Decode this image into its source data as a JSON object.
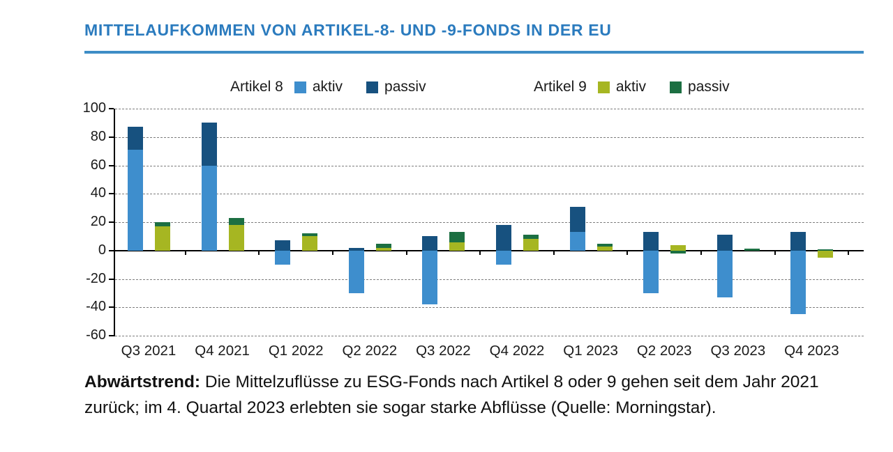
{
  "header": {
    "title": "MITTELAUFKOMMEN VON ARTIKEL-8- UND -9-FONDS IN DER EU"
  },
  "legend": {
    "artikel8_label": "Artikel 8",
    "artikel9_label": "Artikel 9",
    "aktiv_label": "aktiv",
    "passiv_label": "passiv"
  },
  "colors": {
    "title_blue": "#2b7bbe",
    "rule_blue": "#3e8dc6",
    "artikel8_aktiv": "#3e8ecd",
    "artikel8_passiv": "#17517f",
    "artikel9_aktiv": "#a6b622",
    "artikel9_passiv": "#1c6f42",
    "grid": "#7d7d7d",
    "axis": "#000000",
    "text": "#1a1a1a"
  },
  "chart_data": {
    "type": "bar",
    "stacked": true,
    "title": "Mittelaufkommen von Artikel-8- und -9-Fonds in der EU",
    "xlabel": "",
    "ylabel": "",
    "ylim": [
      -60,
      100
    ],
    "yticks": [
      100,
      80,
      60,
      40,
      20,
      0,
      -20,
      -40,
      -60
    ],
    "grid": "dashed-horizontal",
    "legend_position": "top",
    "categories": [
      "Q3 2021",
      "Q4 2021",
      "Q1 2022",
      "Q2 2022",
      "Q3 2022",
      "Q4 2022",
      "Q1 2023",
      "Q2 2023",
      "Q3 2023",
      "Q4 2023"
    ],
    "groups": [
      {
        "name": "Artikel 8",
        "series": [
          {
            "name": "aktiv",
            "color_key": "artikel8_aktiv",
            "values": [
              71,
              60,
              -10,
              -30,
              -38,
              -10,
              13,
              -30,
              -33,
              -45
            ]
          },
          {
            "name": "passiv",
            "color_key": "artikel8_passiv",
            "values": [
              16,
              30,
              7,
              2,
              10,
              18,
              18,
              13,
              11,
              13
            ]
          }
        ]
      },
      {
        "name": "Artikel 9",
        "series": [
          {
            "name": "aktiv",
            "color_key": "artikel9_aktiv",
            "values": [
              17,
              18,
              10,
              2,
              6,
              8,
              3,
              4,
              0,
              -5
            ]
          },
          {
            "name": "passiv",
            "color_key": "artikel9_passiv",
            "values": [
              3,
              5,
              2,
              3,
              7,
              3,
              2,
              -2,
              1.5,
              1
            ]
          }
        ]
      }
    ]
  },
  "caption": {
    "lead": "Abwärtstrend:",
    "text": " Die Mittelzuflüsse zu ESG-Fonds nach Artikel 8 oder 9 gehen seit dem Jahr 2021 zurück; im 4. Quartal 2023 erlebten sie sogar starke Abflüsse (Quelle: Morningstar)."
  }
}
